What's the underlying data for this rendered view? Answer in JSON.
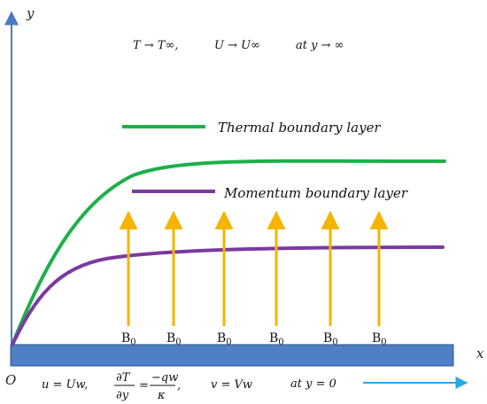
{
  "axes": {
    "x_label": "x",
    "y_label": "y",
    "origin_label": "O"
  },
  "conditions": {
    "top": {
      "text1": "T → T∞,",
      "text2": "U → U∞",
      "text3": "at  y → ∞"
    },
    "bottom": {
      "u": "u = Uw,",
      "dT_num": "∂T",
      "dT_den": "∂y",
      "eq": "=",
      "q_num": "−qw",
      "q_den": "κ",
      "comma": ",",
      "v": "v = Vw",
      "at": "at  y = 0"
    }
  },
  "legend": {
    "thermal": "Thermal boundary layer",
    "momentum": "Momentum boundary layer"
  },
  "field": {
    "symbol": "B",
    "subscript": "0",
    "arrow_count": 6
  },
  "colors": {
    "axis": "#4a7ac7",
    "plate": "#4f7fc4",
    "plate_border": "#2d558f",
    "thermal": "#1db04a",
    "momentum": "#7a3aa0",
    "arrows": "#f4b400",
    "direction_arrow": "#29a8e0"
  }
}
